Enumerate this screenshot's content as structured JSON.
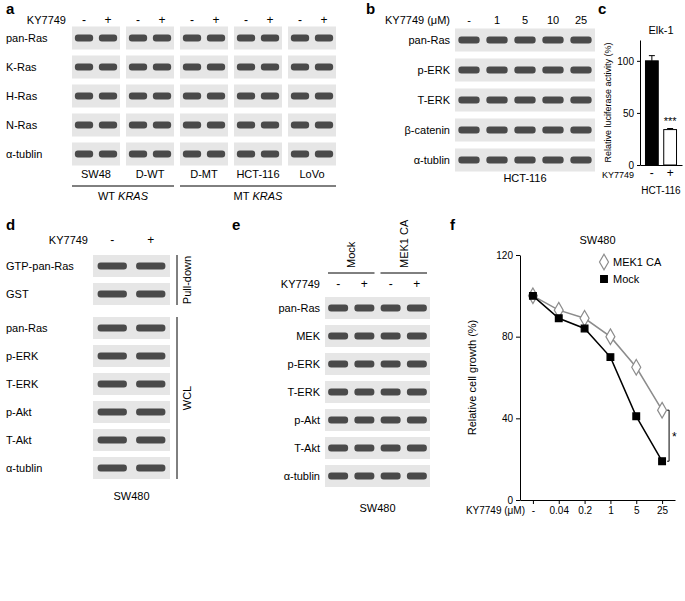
{
  "panel_labels": [
    "a",
    "b",
    "c",
    "d",
    "e",
    "f"
  ],
  "panels": {
    "a": {
      "treatment": "KY7749",
      "lanes": [
        "-",
        "+"
      ],
      "rows": [
        "pan-Ras",
        "K-Ras",
        "H-Ras",
        "N-Ras",
        "α-tublin"
      ],
      "groups": [
        {
          "prefix": "WT",
          "gene": "KRAS",
          "cell_lines": [
            "SW48",
            "D-WT"
          ]
        },
        {
          "prefix": "MT",
          "gene": "KRAS",
          "cell_lines": [
            "D-MT",
            "HCT-116",
            "LoVo"
          ]
        }
      ]
    },
    "b": {
      "treatment": "KY7749 (μM)",
      "lanes": [
        "-",
        "1",
        "5",
        "10",
        "25"
      ],
      "rows": [
        "pan-Ras",
        "p-ERK",
        "T-ERK",
        "β-catenin",
        "α-tublin"
      ],
      "cell_line": "HCT-116"
    },
    "d": {
      "treatment": "KY7749",
      "lanes": [
        "-",
        "+"
      ],
      "sections": [
        {
          "name": "Pull-down",
          "rows": [
            "GTP-pan-Ras",
            "GST"
          ]
        },
        {
          "name": "WCL",
          "rows": [
            "pan-Ras",
            "p-ERK",
            "T-ERK",
            "p-Akt",
            "T-Akt",
            "α-tublin"
          ]
        }
      ],
      "cell_line": "SW480"
    },
    "e": {
      "conditions": [
        "Mock",
        "MEK1 CA"
      ],
      "treatment": "KY7749",
      "lanes": [
        "-",
        "+"
      ],
      "rows": [
        "pan-Ras",
        "MEK",
        "p-ERK",
        "T-ERK",
        "p-Akt",
        "T-Akt",
        "α-tublin"
      ],
      "cell_line": "SW480"
    }
  },
  "chart_data": [
    {
      "type": "bar",
      "title": "Elk-1",
      "subtitle": "HCT-116",
      "xlabel": "KY7749",
      "ylabel": "Relative luciferase activity (%)",
      "categories": [
        "-",
        "+"
      ],
      "values": [
        100,
        34
      ],
      "errors": [
        5,
        1
      ],
      "colors": [
        "#000000",
        "#ffffff"
      ],
      "ylim": [
        0,
        120
      ],
      "yticks": [
        0,
        50,
        100
      ],
      "annotations": [
        {
          "text": "***",
          "category": "+"
        }
      ]
    },
    {
      "type": "line",
      "title": "SW480",
      "xlabel": "KY7749 (μM)",
      "ylabel": "Relative cell growth (%)",
      "categories": [
        "-",
        "0.04",
        "0.2",
        "1",
        "5",
        "25"
      ],
      "series": [
        {
          "name": "MEK1 CA",
          "color": "#8c8c8c",
          "marker": "diamond-open",
          "values": [
            100,
            93,
            89,
            80,
            65,
            44
          ]
        },
        {
          "name": "Mock",
          "color": "#000000",
          "marker": "square",
          "values": [
            100,
            89,
            84,
            70,
            41,
            19
          ]
        }
      ],
      "ylim": [
        0,
        120
      ],
      "yticks": [
        0,
        40,
        80,
        120
      ],
      "legend": "upper right",
      "annotations": [
        {
          "text": "*"
        }
      ]
    }
  ]
}
